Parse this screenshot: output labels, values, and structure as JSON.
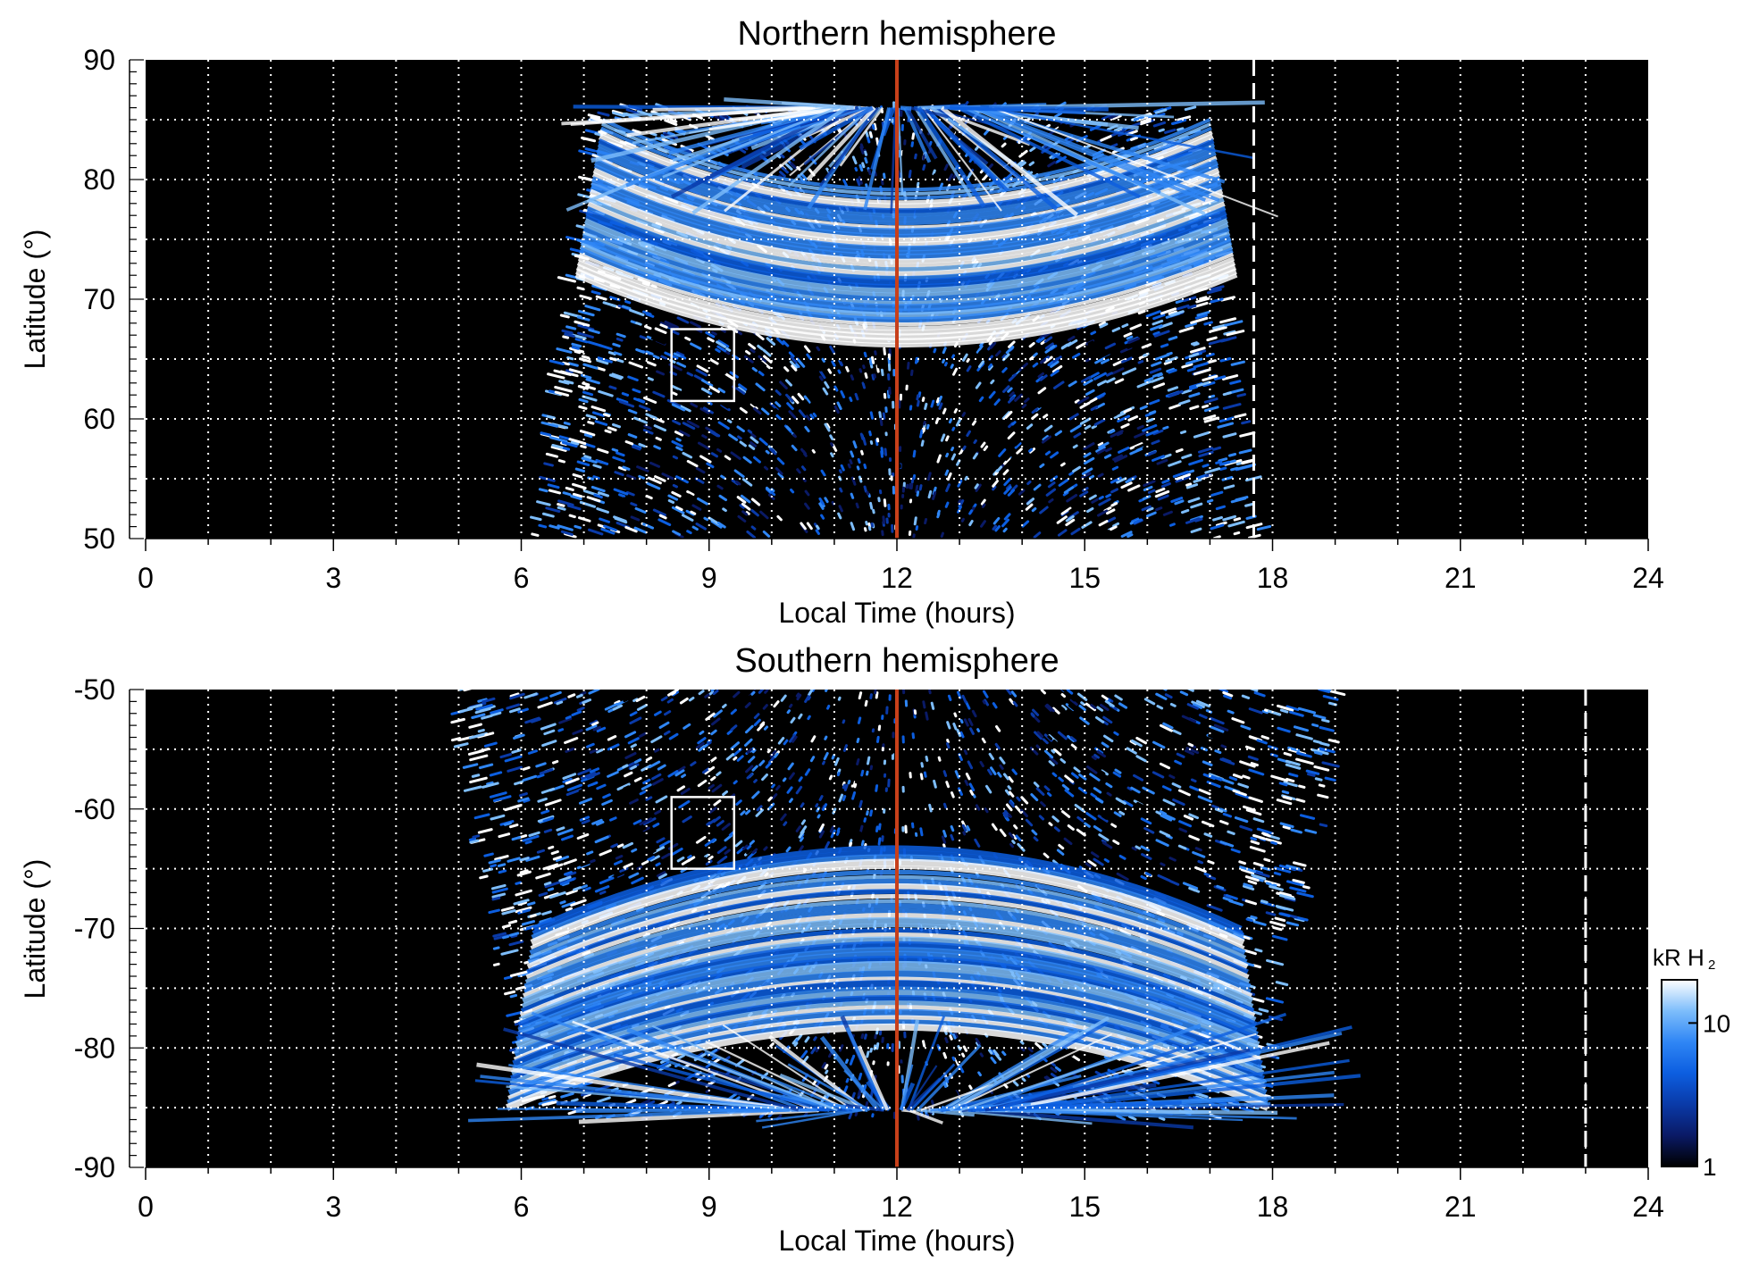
{
  "chart_data": [
    {
      "type": "heatmap",
      "title": "Northern hemisphere",
      "xlabel": "Local Time (hours)",
      "ylabel": "Latitude (°)",
      "xlim": [
        0,
        24
      ],
      "ylim": [
        50,
        90
      ],
      "x_ticks": [
        0,
        3,
        6,
        9,
        12,
        15,
        18,
        21,
        24
      ],
      "x_tick_labels": [
        "0",
        "3",
        "6",
        "9",
        "12",
        "15",
        "18",
        "21",
        "24"
      ],
      "y_ticks": [
        50,
        60,
        70,
        80,
        90
      ],
      "y_tick_labels": [
        "50",
        "60",
        "70",
        "80",
        "90"
      ],
      "grid": true,
      "data_local_time_range": [
        6.5,
        18.1
      ],
      "noon_line_local_time": 12,
      "dashed_line_local_time": 17.7,
      "box": {
        "local_time": [
          8.4,
          9.4
        ],
        "latitude": [
          61.5,
          67.5
        ]
      },
      "bright_band": {
        "local_time": [
          7.3,
          17.0
        ],
        "latitude": [
          72,
          85
        ]
      }
    },
    {
      "type": "heatmap",
      "title": "Southern hemisphere",
      "xlabel": "Local Time (hours)",
      "ylabel": "Latitude (°)",
      "xlim": [
        0,
        24
      ],
      "ylim": [
        -90,
        -50
      ],
      "x_ticks": [
        0,
        3,
        6,
        9,
        12,
        15,
        18,
        21,
        24
      ],
      "x_tick_labels": [
        "0",
        "3",
        "6",
        "9",
        "12",
        "15",
        "18",
        "21",
        "24"
      ],
      "y_ticks": [
        -90,
        -80,
        -70,
        -60,
        -50
      ],
      "y_tick_labels": [
        "-90",
        "-80",
        "-70",
        "-60",
        "-50"
      ],
      "grid": true,
      "data_local_time_range": [
        5.0,
        19.6
      ],
      "noon_line_local_time": 12,
      "dashed_line_local_time": 23.0,
      "box": {
        "local_time": [
          8.4,
          9.4
        ],
        "latitude": [
          -65,
          -59
        ]
      },
      "bright_band": {
        "local_time": [
          6.2,
          17.5
        ],
        "latitude": [
          -85,
          -70
        ]
      }
    }
  ],
  "colorbar": {
    "label_main": "kR H",
    "label_sub": "2",
    "scale": "log",
    "range": [
      1,
      20
    ],
    "ticks": [
      1,
      10
    ],
    "tick_labels": [
      "1",
      "10"
    ]
  },
  "colors": {
    "background": "#000000",
    "noon_line": "#c8401a",
    "grid": "#ffffff",
    "colormap": [
      "#000000",
      "#0a1a66",
      "#0a3aa8",
      "#0c5ee0",
      "#2f86f5",
      "#7dbdfb",
      "#ffffff"
    ]
  }
}
